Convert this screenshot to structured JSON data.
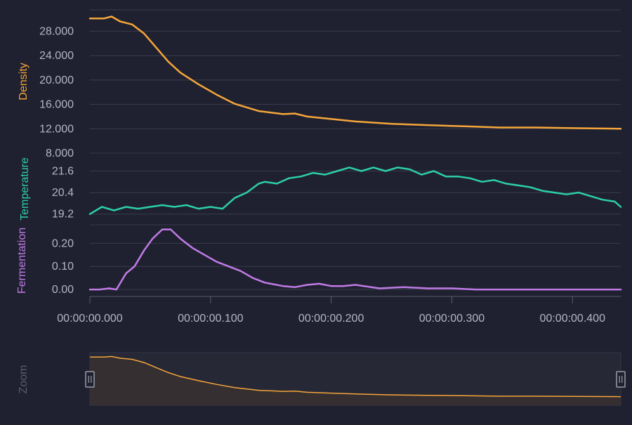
{
  "colors": {
    "background": "#1f2130",
    "grid": "#3a3c4b",
    "tick_text": "#b4b6c2",
    "density": "#f5a53a",
    "temperature": "#2dcfa5",
    "fermentation": "#c07be6",
    "zoom_label": "#5a5c6a",
    "zoom_fill": "#3a3030"
  },
  "chart_data": [
    {
      "type": "line",
      "ylabel": "Density",
      "ylim": [
        8,
        31.5
      ],
      "yticks": [
        "28.000",
        "24.000",
        "20.000",
        "16.000",
        "12.000",
        "8.000"
      ],
      "ytick_values": [
        28,
        24,
        20,
        16,
        12,
        8
      ],
      "series": [
        {
          "name": "Density",
          "x": [
            0,
            0.012,
            0.018,
            0.025,
            0.035,
            0.045,
            0.055,
            0.065,
            0.075,
            0.09,
            0.105,
            0.12,
            0.14,
            0.16,
            0.17,
            0.18,
            0.2,
            0.22,
            0.25,
            0.28,
            0.31,
            0.34,
            0.37,
            0.4,
            0.44
          ],
          "y": [
            30.1,
            30.1,
            30.4,
            29.6,
            29.1,
            27.6,
            25.3,
            23.0,
            21.2,
            19.3,
            17.6,
            16.1,
            14.9,
            14.4,
            14.5,
            14.0,
            13.6,
            13.2,
            12.8,
            12.6,
            12.4,
            12.2,
            12.2,
            12.1,
            12.0
          ]
        }
      ]
    },
    {
      "type": "line",
      "ylabel": "Temperature",
      "ylim": [
        18.6,
        22.6
      ],
      "yticks": [
        "21.6",
        "20.4",
        "19.2"
      ],
      "ytick_values": [
        21.6,
        20.4,
        19.2
      ],
      "series": [
        {
          "name": "Temperature",
          "x": [
            0,
            0.01,
            0.02,
            0.03,
            0.04,
            0.05,
            0.06,
            0.07,
            0.08,
            0.09,
            0.1,
            0.11,
            0.12,
            0.13,
            0.14,
            0.145,
            0.155,
            0.165,
            0.175,
            0.185,
            0.195,
            0.205,
            0.215,
            0.225,
            0.235,
            0.245,
            0.255,
            0.265,
            0.275,
            0.285,
            0.295,
            0.305,
            0.315,
            0.325,
            0.335,
            0.345,
            0.355,
            0.365,
            0.375,
            0.385,
            0.395,
            0.405,
            0.415,
            0.425,
            0.435,
            0.44
          ],
          "y": [
            19.2,
            19.6,
            19.4,
            19.6,
            19.5,
            19.6,
            19.7,
            19.6,
            19.7,
            19.5,
            19.6,
            19.5,
            20.1,
            20.4,
            20.9,
            21.0,
            20.9,
            21.2,
            21.3,
            21.5,
            21.4,
            21.6,
            21.8,
            21.6,
            21.8,
            21.6,
            21.8,
            21.7,
            21.4,
            21.6,
            21.3,
            21.3,
            21.2,
            21.0,
            21.1,
            20.9,
            20.8,
            20.7,
            20.5,
            20.4,
            20.3,
            20.4,
            20.2,
            20.0,
            19.9,
            19.6
          ]
        }
      ]
    },
    {
      "type": "line",
      "ylabel": "Fermentation",
      "ylim": [
        -0.03,
        0.28
      ],
      "yticks": [
        "0.20",
        "0.10",
        "0.00"
      ],
      "ytick_values": [
        0.2,
        0.1,
        0.0
      ],
      "series": [
        {
          "name": "Fermentation",
          "x": [
            0,
            0.008,
            0.016,
            0.022,
            0.03,
            0.037,
            0.045,
            0.052,
            0.06,
            0.067,
            0.075,
            0.085,
            0.095,
            0.105,
            0.115,
            0.125,
            0.135,
            0.145,
            0.16,
            0.17,
            0.18,
            0.19,
            0.2,
            0.21,
            0.22,
            0.24,
            0.26,
            0.28,
            0.3,
            0.32,
            0.35,
            0.4,
            0.44
          ],
          "y": [
            0.0,
            0.0,
            0.005,
            0.0,
            0.07,
            0.1,
            0.17,
            0.22,
            0.26,
            0.26,
            0.22,
            0.18,
            0.15,
            0.12,
            0.1,
            0.08,
            0.05,
            0.03,
            0.015,
            0.01,
            0.02,
            0.025,
            0.015,
            0.015,
            0.02,
            0.005,
            0.01,
            0.005,
            0.005,
            0.0,
            0.0,
            0.0,
            0.0
          ]
        }
      ]
    }
  ],
  "x_axis": {
    "xlim": [
      0,
      0.44
    ],
    "ticks": [
      "00:00:00.000",
      "00:00:00.100",
      "00:00:00.200",
      "00:00:00.300",
      "00:00:00.400"
    ],
    "tick_values": [
      0,
      0.1,
      0.2,
      0.3,
      0.4
    ]
  },
  "zoom": {
    "label": "Zoom",
    "range": [
      0,
      0.44
    ]
  }
}
